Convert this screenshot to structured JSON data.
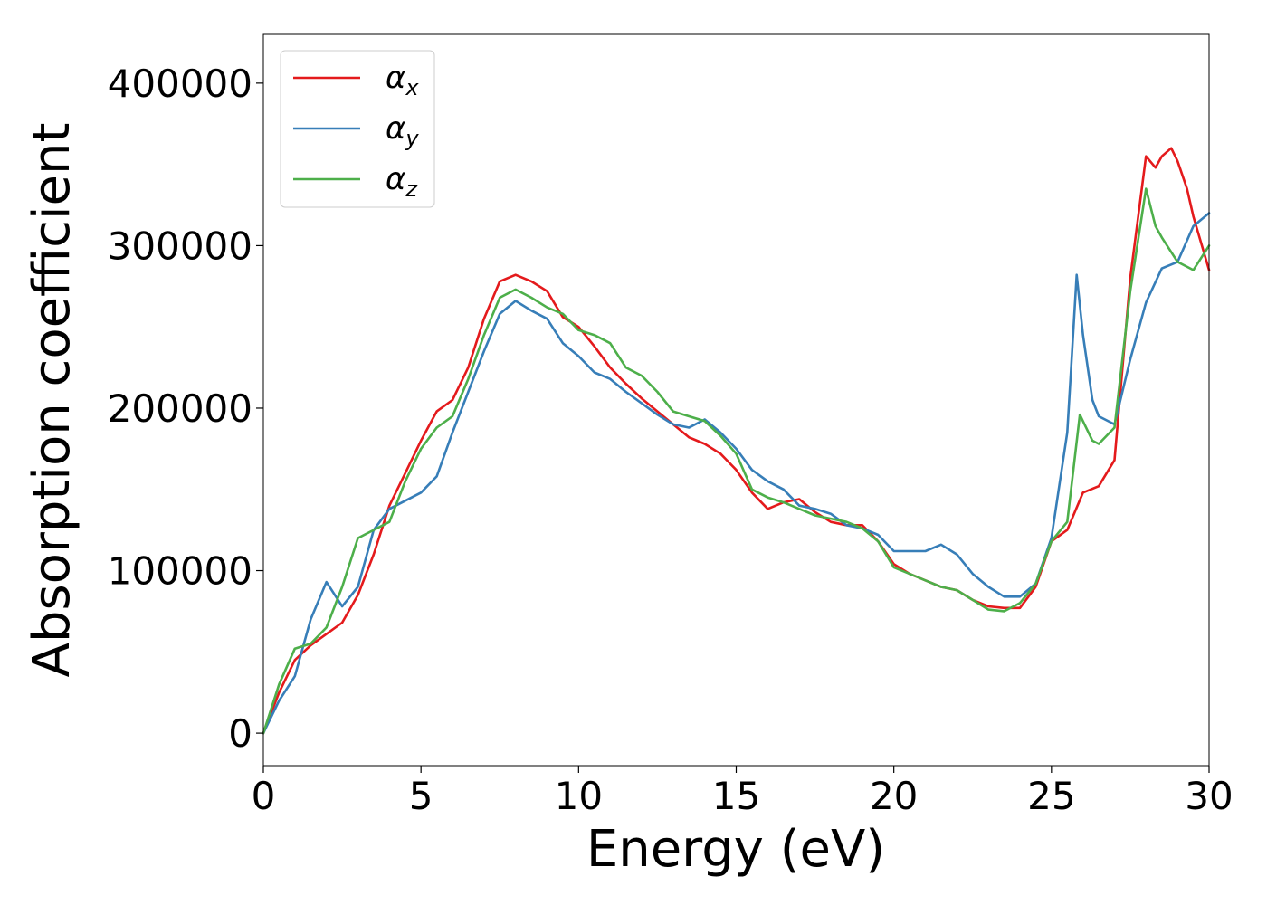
{
  "chart_data": {
    "type": "line",
    "title": "",
    "xlabel": "Energy (eV)",
    "ylabel": "Absorption coefficient",
    "xlim": [
      0,
      30
    ],
    "ylim": [
      -20000,
      430000
    ],
    "xticks": [
      0,
      5,
      10,
      15,
      20,
      25,
      30
    ],
    "yticks": [
      0,
      100000,
      200000,
      300000,
      400000
    ],
    "grid": false,
    "legend": "top-left",
    "series": [
      {
        "name": "α",
        "subscript": "x",
        "color": "#e41a1c",
        "x": [
          0,
          0.5,
          1.0,
          1.5,
          2.0,
          2.5,
          3.0,
          3.5,
          4.0,
          4.5,
          5.0,
          5.5,
          6.0,
          6.5,
          7.0,
          7.5,
          8.0,
          8.5,
          9.0,
          9.5,
          10.0,
          10.5,
          11.0,
          11.5,
          12.0,
          12.5,
          13.0,
          13.5,
          14.0,
          14.5,
          15.0,
          15.5,
          16.0,
          16.5,
          17.0,
          17.5,
          18.0,
          18.5,
          19.0,
          19.5,
          20.0,
          20.5,
          21.0,
          21.5,
          22.0,
          22.5,
          23.0,
          23.5,
          24.0,
          24.5,
          25.0,
          25.5,
          26.0,
          26.5,
          27.0,
          27.5,
          28.0,
          28.3,
          28.5,
          28.8,
          29.0,
          29.3,
          29.5,
          30.0
        ],
        "y": [
          0,
          25000,
          45000,
          54000,
          61000,
          68000,
          85000,
          110000,
          140000,
          160000,
          180000,
          198000,
          205000,
          225000,
          255000,
          278000,
          282000,
          278000,
          272000,
          256000,
          250000,
          238000,
          225000,
          215000,
          206000,
          198000,
          190000,
          182000,
          178000,
          172000,
          162000,
          148000,
          138000,
          142000,
          144000,
          136000,
          130000,
          128000,
          128000,
          118000,
          104000,
          98000,
          94000,
          90000,
          88000,
          82000,
          78000,
          77000,
          77000,
          90000,
          118000,
          125000,
          148000,
          152000,
          168000,
          280000,
          355000,
          348000,
          355000,
          360000,
          352000,
          335000,
          318000,
          285000
        ]
      },
      {
        "name": "α",
        "subscript": "y",
        "color": "#377eb8",
        "x": [
          0,
          0.5,
          1.0,
          1.5,
          2.0,
          2.5,
          3.0,
          3.5,
          4.0,
          4.5,
          5.0,
          5.5,
          6.0,
          6.5,
          7.0,
          7.5,
          8.0,
          8.5,
          9.0,
          9.5,
          10.0,
          10.5,
          11.0,
          11.5,
          12.0,
          12.5,
          13.0,
          13.5,
          14.0,
          14.5,
          15.0,
          15.5,
          16.0,
          16.5,
          17.0,
          17.5,
          18.0,
          18.5,
          19.0,
          19.5,
          20.0,
          20.5,
          21.0,
          21.5,
          22.0,
          22.5,
          23.0,
          23.5,
          24.0,
          24.5,
          25.0,
          25.5,
          25.8,
          26.0,
          26.3,
          26.5,
          27.0,
          27.5,
          28.0,
          28.5,
          29.0,
          29.5,
          30.0
        ],
        "y": [
          0,
          20000,
          35000,
          70000,
          93000,
          78000,
          90000,
          125000,
          138000,
          143000,
          148000,
          158000,
          185000,
          210000,
          235000,
          258000,
          266000,
          260000,
          255000,
          240000,
          232000,
          222000,
          218000,
          210000,
          203000,
          196000,
          190000,
          188000,
          193000,
          185000,
          175000,
          162000,
          155000,
          150000,
          140000,
          138000,
          135000,
          128000,
          126000,
          122000,
          112000,
          112000,
          112000,
          116000,
          110000,
          98000,
          90000,
          84000,
          84000,
          92000,
          120000,
          185000,
          282000,
          245000,
          205000,
          195000,
          190000,
          230000,
          265000,
          286000,
          290000,
          312000,
          320000
        ]
      },
      {
        "name": "α",
        "subscript": "z",
        "color": "#4daf4a",
        "x": [
          0,
          0.5,
          1.0,
          1.5,
          2.0,
          2.5,
          3.0,
          3.5,
          4.0,
          4.5,
          5.0,
          5.5,
          6.0,
          6.5,
          7.0,
          7.5,
          8.0,
          8.5,
          9.0,
          9.5,
          10.0,
          10.5,
          11.0,
          11.5,
          12.0,
          12.5,
          13.0,
          13.5,
          14.0,
          14.5,
          15.0,
          15.5,
          16.0,
          16.5,
          17.0,
          17.5,
          18.0,
          18.5,
          19.0,
          19.5,
          20.0,
          20.5,
          21.0,
          21.5,
          22.0,
          22.5,
          23.0,
          23.5,
          24.0,
          24.5,
          25.0,
          25.5,
          25.9,
          26.3,
          26.5,
          27.0,
          27.5,
          28.0,
          28.3,
          28.5,
          29.0,
          29.5,
          30.0
        ],
        "y": [
          0,
          30000,
          52000,
          55000,
          65000,
          90000,
          120000,
          125000,
          130000,
          155000,
          175000,
          188000,
          195000,
          218000,
          245000,
          268000,
          273000,
          268000,
          262000,
          258000,
          248000,
          245000,
          240000,
          225000,
          220000,
          210000,
          198000,
          195000,
          192000,
          183000,
          172000,
          150000,
          145000,
          142000,
          138000,
          134000,
          132000,
          130000,
          126000,
          118000,
          102000,
          98000,
          94000,
          90000,
          88000,
          82000,
          76000,
          75000,
          80000,
          92000,
          118000,
          130000,
          196000,
          180000,
          178000,
          188000,
          272000,
          335000,
          312000,
          305000,
          290000,
          285000,
          300000
        ]
      }
    ]
  }
}
